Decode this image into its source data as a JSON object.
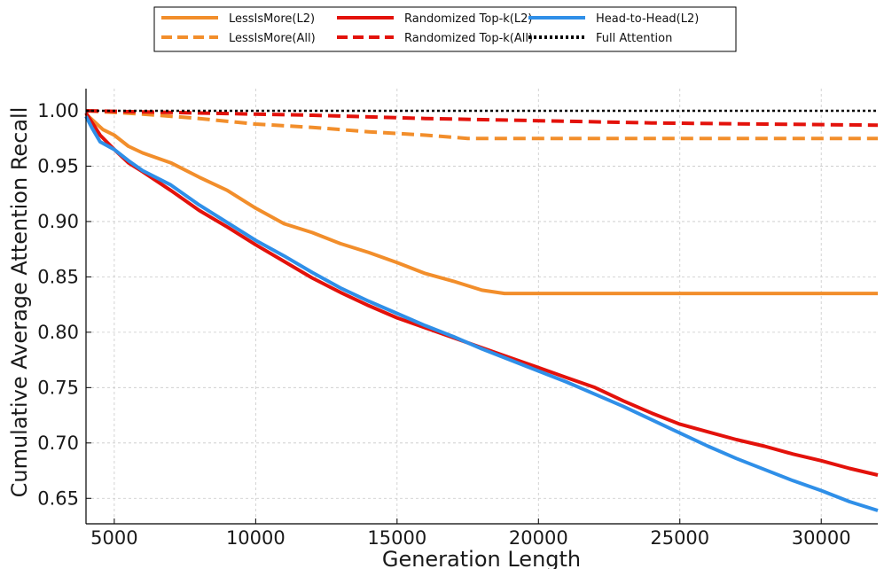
{
  "chart_data": {
    "type": "line",
    "title": "",
    "xlabel": "Generation Length",
    "ylabel": "Cumulative Average Attention Recall",
    "xlim": [
      4000,
      32000
    ],
    "ylim": [
      0.627,
      1.02
    ],
    "xticks": [
      5000,
      10000,
      15000,
      20000,
      25000,
      30000
    ],
    "yticks": [
      0.65,
      0.7,
      0.75,
      0.8,
      0.85,
      0.9,
      0.95,
      1.0
    ],
    "xtick_labels": [
      "5000",
      "10000",
      "15000",
      "20000",
      "25000",
      "30000"
    ],
    "ytick_labels": [
      "0.65",
      "0.70",
      "0.75",
      "0.80",
      "0.85",
      "0.90",
      "0.95",
      "1.00"
    ],
    "grid": true,
    "legend_position": "top-center",
    "series": [
      {
        "name": "LessIsMore(L2)",
        "color": "#F28E2B",
        "style": "solid",
        "x": [
          4000,
          4300,
          4600,
          5000,
          5500,
          6000,
          7000,
          8000,
          9000,
          10000,
          11000,
          12000,
          13000,
          14000,
          15000,
          16000,
          17000,
          18000,
          18800,
          20000,
          25000,
          30000,
          32000
        ],
        "y": [
          0.997,
          0.99,
          0.983,
          0.978,
          0.968,
          0.962,
          0.953,
          0.94,
          0.928,
          0.912,
          0.898,
          0.89,
          0.88,
          0.872,
          0.863,
          0.853,
          0.846,
          0.838,
          0.835,
          0.835,
          0.835,
          0.835,
          0.835
        ]
      },
      {
        "name": "Randomized Top-k(L2)",
        "color": "#E3120B",
        "style": "solid",
        "x": [
          4000,
          4500,
          5000,
          5500,
          6000,
          7000,
          8000,
          9000,
          10000,
          11000,
          12000,
          13000,
          14000,
          15000,
          16000,
          17000,
          18000,
          19000,
          20000,
          21000,
          22000,
          23000,
          24000,
          25000,
          26000,
          27000,
          28000,
          29000,
          30000,
          31000,
          32000
        ],
        "y": [
          0.998,
          0.978,
          0.965,
          0.953,
          0.945,
          0.928,
          0.91,
          0.895,
          0.879,
          0.864,
          0.849,
          0.836,
          0.824,
          0.813,
          0.804,
          0.795,
          0.786,
          0.777,
          0.768,
          0.759,
          0.75,
          0.738,
          0.727,
          0.717,
          0.71,
          0.703,
          0.697,
          0.69,
          0.684,
          0.677,
          0.671
        ]
      },
      {
        "name": "Head-to-Head(L2)",
        "color": "#2F8FE8",
        "style": "solid",
        "x": [
          4000,
          4200,
          4500,
          5000,
          5500,
          6000,
          7000,
          8000,
          9000,
          10000,
          11000,
          12000,
          13000,
          14000,
          15000,
          16000,
          17000,
          18000,
          19000,
          20000,
          21000,
          22000,
          23000,
          24000,
          25000,
          26000,
          27000,
          28000,
          29000,
          30000,
          31000,
          32000
        ],
        "y": [
          0.995,
          0.985,
          0.972,
          0.965,
          0.955,
          0.946,
          0.933,
          0.915,
          0.899,
          0.883,
          0.869,
          0.854,
          0.84,
          0.828,
          0.817,
          0.806,
          0.796,
          0.785,
          0.775,
          0.765,
          0.755,
          0.744,
          0.733,
          0.721,
          0.709,
          0.697,
          0.686,
          0.676,
          0.666,
          0.657,
          0.647,
          0.639
        ]
      },
      {
        "name": "LessIsMore(All)",
        "color": "#F28E2B",
        "style": "dashed",
        "x": [
          4000,
          6000,
          8000,
          10000,
          12000,
          14000,
          16000,
          17500,
          20000,
          25000,
          30000,
          32000
        ],
        "y": [
          1.0,
          0.997,
          0.993,
          0.988,
          0.985,
          0.981,
          0.978,
          0.975,
          0.975,
          0.975,
          0.975,
          0.975
        ]
      },
      {
        "name": "Randomized Top-k(All)",
        "color": "#E3120B",
        "style": "dashed",
        "x": [
          4000,
          8000,
          12000,
          16000,
          20000,
          24000,
          28000,
          32000
        ],
        "y": [
          1.0,
          0.998,
          0.996,
          0.993,
          0.991,
          0.989,
          0.988,
          0.987
        ]
      },
      {
        "name": "Full Attention",
        "color": "#000000",
        "style": "dotted",
        "x": [
          4000,
          32000
        ],
        "y": [
          1.0,
          1.0
        ]
      }
    ]
  }
}
